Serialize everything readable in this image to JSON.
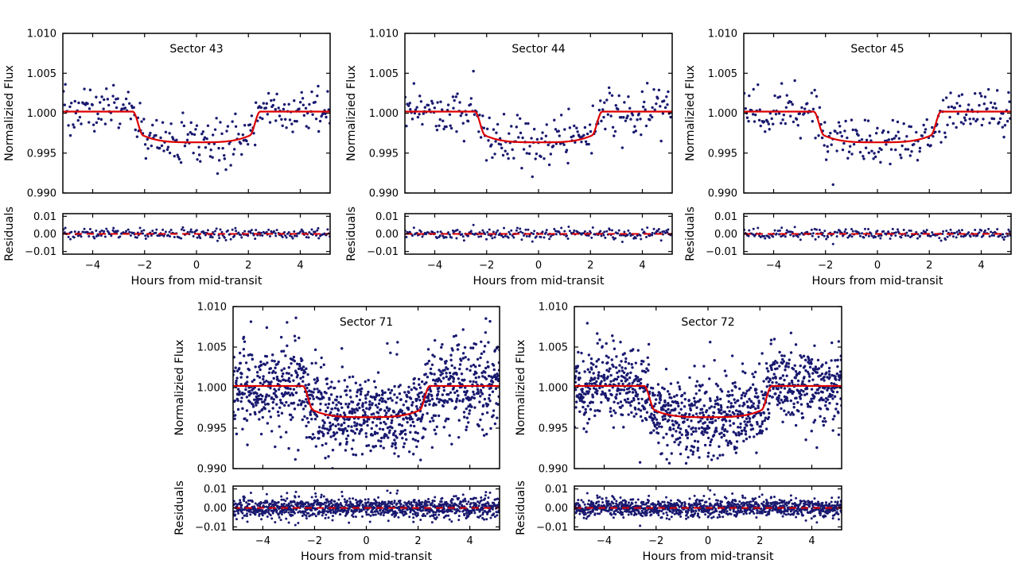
{
  "figure": {
    "description": "TESS transit light curves with best-fit transit model and residuals, five sectors",
    "background": "#ffffff",
    "xlabel": "Hours from mid-transit",
    "main_ylabel": "Normalizied Flux",
    "resid_ylabel": "Residuals",
    "x_tick_values": [
      -4,
      -2,
      0,
      2,
      4
    ],
    "x_tick_labels": [
      "−4",
      "−2",
      "0",
      "2",
      "4"
    ],
    "main_y_tick_values": [
      0.99,
      0.995,
      1.0,
      1.005,
      1.01
    ],
    "main_y_tick_labels": [
      "0.990",
      "0.995",
      "1.000",
      "1.005",
      "1.010"
    ],
    "resid_y_tick_values": [
      -0.01,
      0.0,
      0.01
    ],
    "resid_y_tick_labels": [
      "−0.01",
      "0.00",
      "0.01"
    ],
    "point_color": "#191970",
    "model_color": "#dd0000",
    "axis_color": "#000000",
    "grid": false,
    "legend": "none"
  },
  "chart_data": [
    {
      "type": "scatter",
      "title": "Sector 43",
      "xlabel": "Hours from mid-transit",
      "ylabel": "Normalizied Flux",
      "resid_ylabel": "Residuals",
      "xlim": [
        -5.15,
        5.15
      ],
      "ylim": [
        0.99,
        1.01
      ],
      "resid_ylim": [
        -0.0115,
        0.0115
      ],
      "n_points": 255,
      "noise_sigma": 0.00145,
      "seed": 43,
      "model": {
        "baseline_flux": 1.0002,
        "bottom_flux": 0.99635,
        "shoulder_flux": 0.9972,
        "flat_bottom_halfwidth_hr": 2.05,
        "full_transit_halfwidth_hr": 2.45,
        "transit_depth": 0.0038,
        "transit_duration_hr": 4.9
      },
      "residual_zero_line": 0.0
    },
    {
      "type": "scatter",
      "title": "Sector 44",
      "xlabel": "Hours from mid-transit",
      "ylabel": "Normalizied Flux",
      "resid_ylabel": "Residuals",
      "xlim": [
        -5.15,
        5.15
      ],
      "ylim": [
        0.99,
        1.01
      ],
      "resid_ylim": [
        -0.0115,
        0.0115
      ],
      "n_points": 255,
      "noise_sigma": 0.0015,
      "seed": 44,
      "model": {
        "baseline_flux": 1.0002,
        "bottom_flux": 0.99635,
        "shoulder_flux": 0.9972,
        "flat_bottom_halfwidth_hr": 2.05,
        "full_transit_halfwidth_hr": 2.45,
        "transit_depth": 0.0038,
        "transit_duration_hr": 4.9
      },
      "residual_zero_line": 0.0
    },
    {
      "type": "scatter",
      "title": "Sector 45",
      "xlabel": "Hours from mid-transit",
      "ylabel": "Normalizied Flux",
      "resid_ylabel": "Residuals",
      "xlim": [
        -5.15,
        5.15
      ],
      "ylim": [
        0.99,
        1.01
      ],
      "resid_ylim": [
        -0.0115,
        0.0115
      ],
      "n_points": 255,
      "noise_sigma": 0.0015,
      "seed": 45,
      "model": {
        "baseline_flux": 1.0002,
        "bottom_flux": 0.99635,
        "shoulder_flux": 0.9972,
        "flat_bottom_halfwidth_hr": 2.05,
        "full_transit_halfwidth_hr": 2.45,
        "transit_depth": 0.0038,
        "transit_duration_hr": 4.9
      },
      "residual_zero_line": 0.0
    },
    {
      "type": "scatter",
      "title": "Sector 71",
      "xlabel": "Hours from mid-transit",
      "ylabel": "Normalizied Flux",
      "resid_ylabel": "Residuals",
      "xlim": [
        -5.15,
        5.15
      ],
      "ylim": [
        0.99,
        1.01
      ],
      "resid_ylim": [
        -0.0115,
        0.0115
      ],
      "n_points": 1150,
      "noise_sigma": 0.0028,
      "seed": 71,
      "model": {
        "baseline_flux": 1.0002,
        "bottom_flux": 0.99635,
        "shoulder_flux": 0.9972,
        "flat_bottom_halfwidth_hr": 2.05,
        "full_transit_halfwidth_hr": 2.45,
        "transit_depth": 0.0038,
        "transit_duration_hr": 4.9
      },
      "residual_zero_line": 0.0
    },
    {
      "type": "scatter",
      "title": "Sector 72",
      "xlabel": "Hours from mid-transit",
      "ylabel": "Normalizied Flux",
      "resid_ylabel": "Residuals",
      "xlim": [
        -5.15,
        5.15
      ],
      "ylim": [
        0.99,
        1.01
      ],
      "resid_ylim": [
        -0.0115,
        0.0115
      ],
      "n_points": 1150,
      "noise_sigma": 0.0024,
      "seed": 72,
      "model": {
        "baseline_flux": 1.0002,
        "bottom_flux": 0.99635,
        "shoulder_flux": 0.9972,
        "flat_bottom_halfwidth_hr": 2.05,
        "full_transit_halfwidth_hr": 2.45,
        "transit_depth": 0.0038,
        "transit_duration_hr": 4.9
      },
      "residual_zero_line": 0.0
    }
  ]
}
